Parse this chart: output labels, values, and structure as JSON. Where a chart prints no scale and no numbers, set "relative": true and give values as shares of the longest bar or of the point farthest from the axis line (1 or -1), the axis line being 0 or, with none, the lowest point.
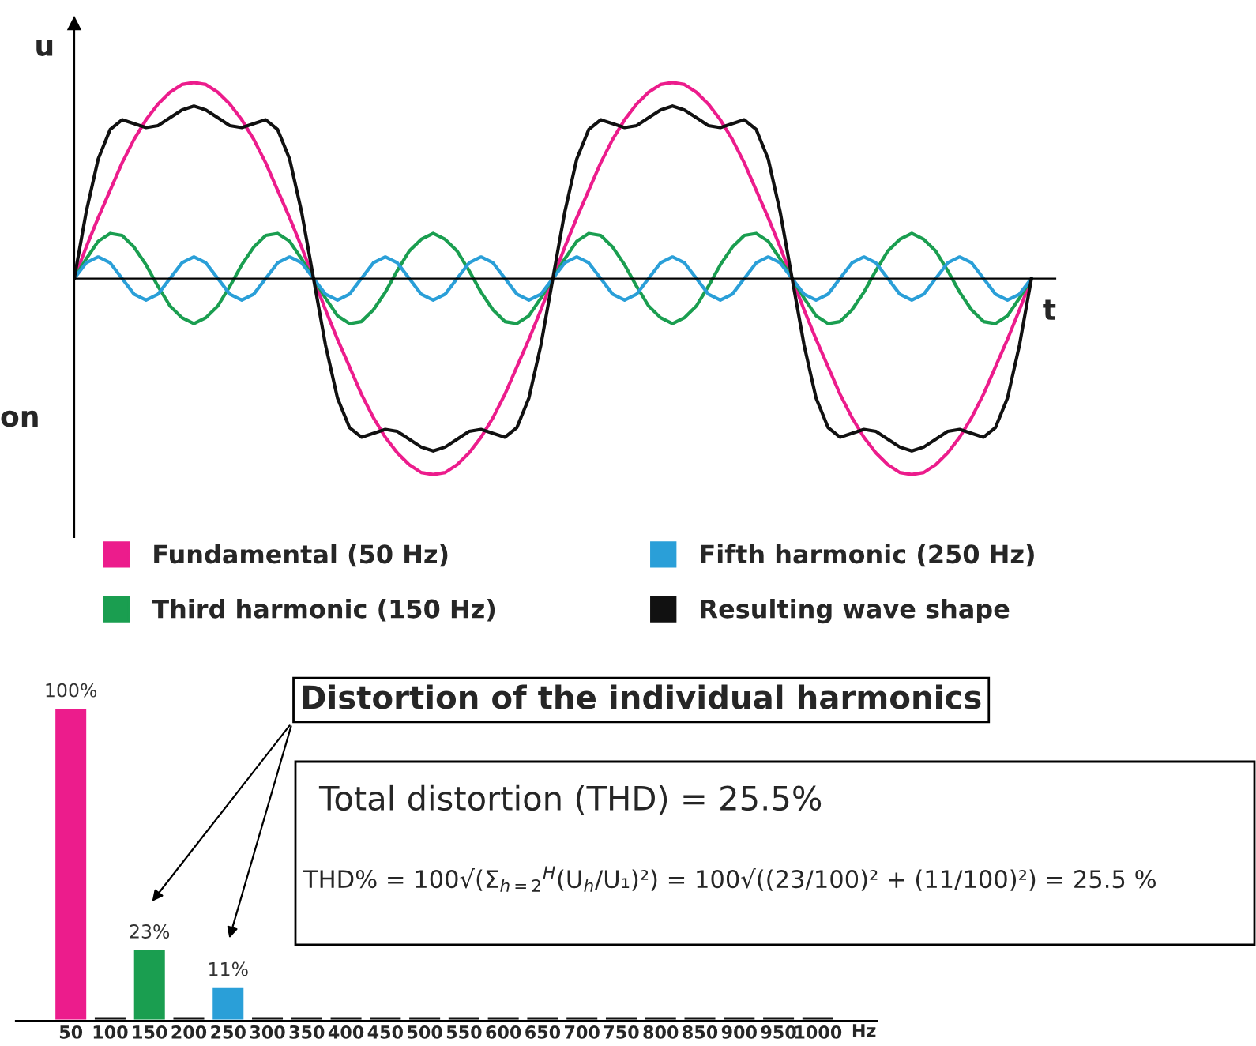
{
  "chart_data": [
    {
      "type": "line",
      "relative": true,
      "xlabel": "t",
      "ylabel": "u",
      "legend": "bottom",
      "grid": false,
      "marker": "none",
      "line_style": "solid",
      "annotations": [
        "on"
      ],
      "categories": [
        null,
        null,
        null,
        null,
        null,
        null,
        null,
        null,
        null,
        null,
        null,
        null,
        null,
        null,
        null,
        null,
        null,
        null,
        null,
        null,
        null,
        null,
        null,
        null,
        null,
        null,
        null,
        null,
        null,
        null,
        null,
        null,
        null,
        null,
        null,
        null,
        null,
        null,
        null,
        null,
        null,
        null,
        null,
        null,
        null,
        null,
        null,
        null,
        null,
        null,
        null,
        null,
        null,
        null,
        null,
        null,
        null,
        null,
        null,
        null,
        null,
        null,
        null,
        null,
        null,
        null,
        null,
        null,
        null,
        null,
        null,
        null,
        null,
        null,
        null,
        null,
        null,
        null,
        null,
        null,
        null
      ],
      "series": [
        {
          "name": "Fundamental (50 Hz)",
          "color": "#ec1c8c",
          "values": [
            0,
            0.16,
            0.31,
            0.45,
            0.59,
            0.71,
            0.81,
            0.89,
            0.95,
            0.99,
            1,
            0.99,
            0.95,
            0.89,
            0.81,
            0.71,
            0.59,
            0.45,
            0.31,
            0.16,
            0,
            -0.16,
            -0.31,
            -0.45,
            -0.59,
            -0.71,
            -0.81,
            -0.89,
            -0.95,
            -0.99,
            -1,
            -0.99,
            -0.95,
            -0.89,
            -0.81,
            -0.71,
            -0.59,
            -0.45,
            -0.31,
            -0.16,
            0,
            0.16,
            0.31,
            0.45,
            0.59,
            0.71,
            0.81,
            0.89,
            0.95,
            0.99,
            1,
            0.99,
            0.95,
            0.89,
            0.81,
            0.71,
            0.59,
            0.45,
            0.31,
            0.16,
            0,
            -0.16,
            -0.31,
            -0.45,
            -0.59,
            -0.71,
            -0.81,
            -0.89,
            -0.95,
            -0.99,
            -1,
            -0.99,
            -0.95,
            -0.89,
            -0.81,
            -0.71,
            -0.59,
            -0.45,
            -0.31,
            -0.16,
            0
          ]
        },
        {
          "name": "Third harmonic (150 Hz)",
          "color": "#1a9e50",
          "values": [
            0,
            0.1,
            0.19,
            0.23,
            0.22,
            0.16,
            0.07,
            -0.04,
            -0.14,
            -0.2,
            -0.23,
            -0.2,
            -0.14,
            -0.04,
            0.07,
            0.16,
            0.22,
            0.23,
            0.19,
            0.1,
            0,
            -0.1,
            -0.19,
            -0.23,
            -0.22,
            -0.16,
            -0.07,
            0.04,
            0.14,
            0.2,
            0.23,
            0.2,
            0.14,
            0.04,
            -0.07,
            -0.16,
            -0.22,
            -0.23,
            -0.19,
            -0.1,
            0,
            0.1,
            0.19,
            0.23,
            0.22,
            0.16,
            0.07,
            -0.04,
            -0.14,
            -0.2,
            -0.23,
            -0.2,
            -0.14,
            -0.04,
            0.07,
            0.16,
            0.22,
            0.23,
            0.19,
            0.1,
            0,
            -0.1,
            -0.19,
            -0.23,
            -0.22,
            -0.16,
            -0.07,
            0.04,
            0.14,
            0.2,
            0.23,
            0.2,
            0.14,
            0.04,
            -0.07,
            -0.16,
            -0.22,
            -0.23,
            -0.19,
            -0.1,
            0
          ]
        },
        {
          "name": "Fifth harmonic (250 Hz)",
          "color": "#2a9fd8",
          "values": [
            0,
            0.08,
            0.11,
            0.08,
            0,
            -0.08,
            -0.11,
            -0.08,
            0,
            0.08,
            0.11,
            0.08,
            0,
            -0.08,
            -0.11,
            -0.08,
            0,
            0.08,
            0.11,
            0.08,
            0,
            -0.08,
            -0.11,
            -0.08,
            0,
            0.08,
            0.11,
            0.08,
            0,
            -0.08,
            -0.11,
            -0.08,
            0,
            0.08,
            0.11,
            0.08,
            0,
            -0.08,
            -0.11,
            -0.08,
            0,
            0.08,
            0.11,
            0.08,
            0,
            -0.08,
            -0.11,
            -0.08,
            0,
            0.08,
            0.11,
            0.08,
            0,
            -0.08,
            -0.11,
            -0.08,
            0,
            0.08,
            0.11,
            0.08,
            0,
            -0.08,
            -0.11,
            -0.08,
            0,
            0.08,
            0.11,
            0.08,
            0,
            -0.08,
            -0.11,
            -0.08,
            0,
            0.08,
            0.11,
            0.08,
            0,
            -0.08,
            -0.11,
            -0.08,
            0
          ]
        },
        {
          "name": "Resulting wave shape",
          "color": "#111111",
          "values": [
            0,
            0.34,
            0.61,
            0.76,
            0.81,
            0.79,
            0.77,
            0.78,
            0.82,
            0.86,
            0.88,
            0.86,
            0.82,
            0.78,
            0.77,
            0.79,
            0.81,
            0.76,
            0.61,
            0.34,
            0,
            -0.34,
            -0.61,
            -0.76,
            -0.81,
            -0.79,
            -0.77,
            -0.78,
            -0.82,
            -0.86,
            -0.88,
            -0.86,
            -0.82,
            -0.78,
            -0.77,
            -0.79,
            -0.81,
            -0.76,
            -0.61,
            -0.34,
            0,
            0.34,
            0.61,
            0.76,
            0.81,
            0.79,
            0.77,
            0.78,
            0.82,
            0.86,
            0.88,
            0.86,
            0.82,
            0.78,
            0.77,
            0.79,
            0.81,
            0.76,
            0.61,
            0.34,
            0,
            -0.34,
            -0.61,
            -0.76,
            -0.81,
            -0.79,
            -0.77,
            -0.78,
            -0.82,
            -0.86,
            -0.88,
            -0.86,
            -0.82,
            -0.78,
            -0.77,
            -0.79,
            -0.81,
            -0.76,
            -0.61,
            -0.34,
            0
          ]
        }
      ]
    },
    {
      "type": "bar",
      "title": "Distortion of the individual harmonics",
      "xlabel": "Hz",
      "grid": false,
      "tick_labels": "x",
      "categories": [
        "50",
        "100",
        "150",
        "200",
        "250",
        "300",
        "350",
        "400",
        "450",
        "500",
        "550",
        "600",
        "650",
        "700",
        "750",
        "800",
        "850",
        "900",
        "950",
        "1000"
      ],
      "values": [
        100,
        1.5,
        23,
        1.5,
        11,
        1.5,
        1.5,
        1.5,
        1.5,
        1.5,
        1.5,
        1.5,
        1.5,
        1.5,
        1.5,
        1.5,
        1.5,
        1.5,
        1.5,
        1.5
      ],
      "colors": [
        "#ec1c8c",
        "#111111",
        "#1a9e50",
        "#111111",
        "#2a9fd8",
        "#111111",
        "#111111",
        "#111111",
        "#111111",
        "#111111",
        "#111111",
        "#111111",
        "#111111",
        "#111111",
        "#111111",
        "#111111",
        "#111111",
        "#111111",
        "#111111",
        "#111111"
      ],
      "value_labels": [
        "100%",
        null,
        "23%",
        null,
        "11%",
        null,
        null,
        null,
        null,
        null,
        null,
        null,
        null,
        null,
        null,
        null,
        null,
        null,
        null,
        null
      ],
      "annotations": [
        "Total distortion (THD) = 25.5%",
        "THD% = 100√(Σ$_{h=2}$$^{H}$(U$_{h}$/U₁)²) = 100√((23/100)² + (11/100)²) = 25.5 %"
      ]
    }
  ]
}
